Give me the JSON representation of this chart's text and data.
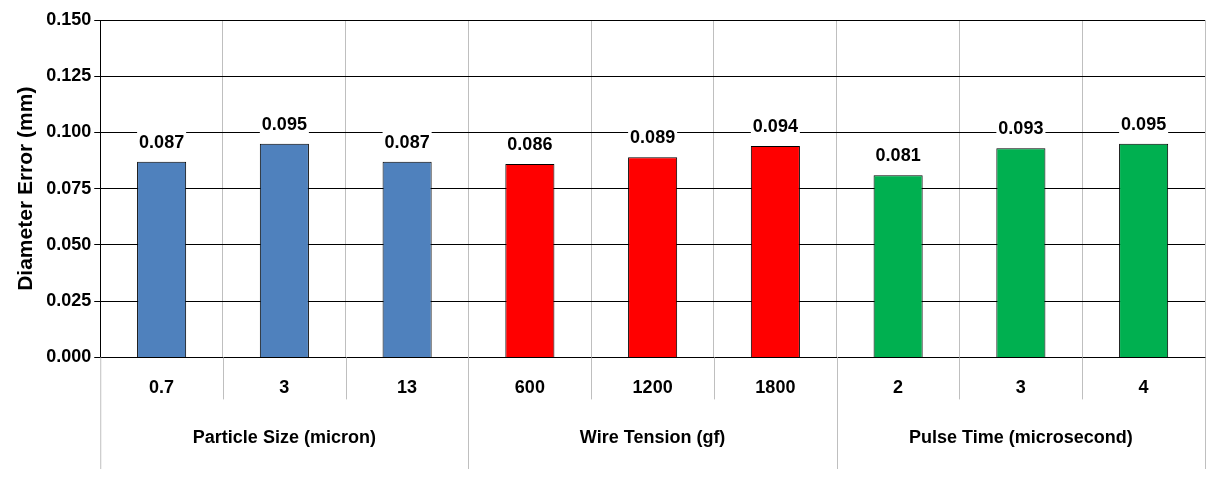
{
  "chart_data": {
    "type": "bar",
    "ylabel": "Diameter Error (mm)",
    "categories": [
      "0.7",
      "3",
      "13",
      "600",
      "1200",
      "1800",
      "2",
      "3",
      "4"
    ],
    "series": [
      {
        "color": "#4f81bd",
        "values": [
          0.087,
          0.095,
          0.087,
          null,
          null,
          null,
          null,
          null,
          null
        ]
      },
      {
        "color": "#ff0000",
        "values": [
          null,
          null,
          null,
          0.086,
          0.089,
          0.094,
          null,
          null,
          null
        ]
      },
      {
        "color": "#00b050",
        "values": [
          null,
          null,
          null,
          null,
          null,
          null,
          0.081,
          0.093,
          0.095
        ]
      }
    ],
    "ylim": [
      0,
      0.15
    ],
    "yticks": [
      {
        "value": 0,
        "label": "0.000"
      },
      {
        "value": 0.025,
        "label": "0.025"
      },
      {
        "value": 0.05,
        "label": "0.050"
      },
      {
        "value": 0.075,
        "label": "0.075"
      },
      {
        "value": 0.1,
        "label": "0.100"
      },
      {
        "value": 0.125,
        "label": "0.125"
      },
      {
        "value": 0.15,
        "label": "0.150"
      }
    ],
    "annotations": [
      "Particle Size (micron)",
      "Wire Tension (gf)",
      "Pulse Time (microsecond)"
    ],
    "grid": true,
    "legend": false,
    "data_labels": true
  }
}
